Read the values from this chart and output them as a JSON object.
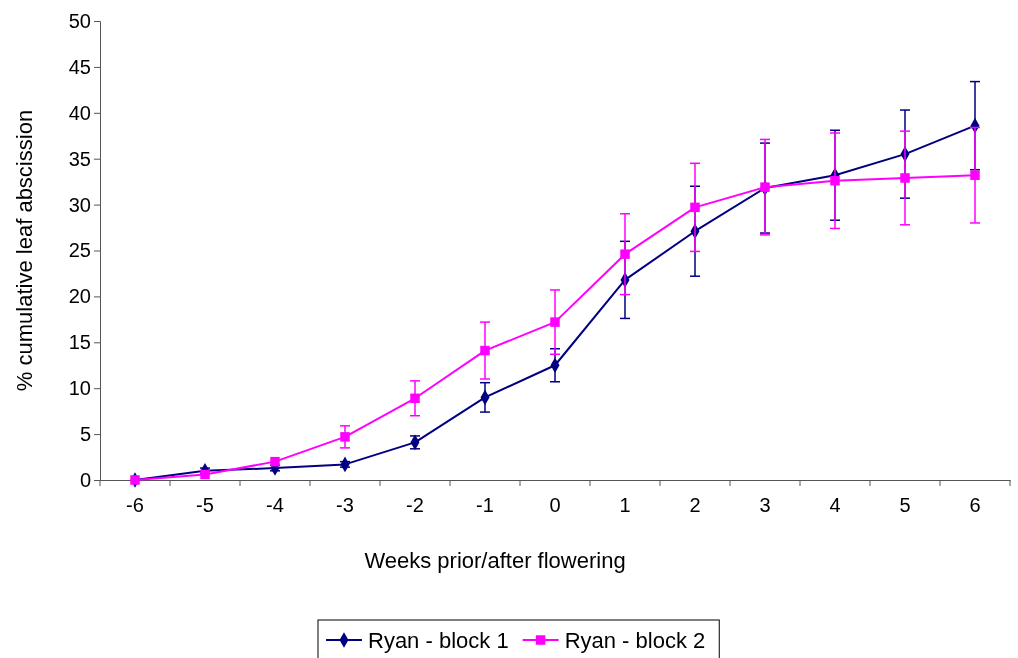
{
  "chart_data": {
    "type": "line",
    "xlabel": "Weeks prior/after flowering",
    "ylabel": "% cumulative leaf abscission",
    "categories": [
      "-6",
      "-5",
      "-4",
      "-3",
      "-2",
      "-1",
      "0",
      "1",
      "2",
      "3",
      "4",
      "5",
      "6"
    ],
    "ylim": [
      0,
      50
    ],
    "yticks": [
      0,
      5,
      10,
      15,
      20,
      25,
      30,
      35,
      40,
      45,
      50
    ],
    "grid": false,
    "legend": "bottom",
    "series": [
      {
        "name": "Ryan - block 1",
        "color": "#000080",
        "marker": "diamond",
        "values": [
          0,
          1.0,
          1.3,
          1.7,
          4.1,
          9.0,
          12.5,
          21.8,
          27.1,
          31.8,
          33.2,
          35.5,
          38.6
        ],
        "errors": [
          null,
          0.3,
          0.3,
          0.3,
          0.7,
          1.6,
          1.8,
          4.2,
          4.9,
          4.9,
          4.9,
          4.8,
          4.8
        ]
      },
      {
        "name": "Ryan - block 2",
        "color": "#ff00ff",
        "marker": "square",
        "values": [
          0,
          0.6,
          2.0,
          4.7,
          8.9,
          14.1,
          17.2,
          24.6,
          29.7,
          31.9,
          32.6,
          32.9,
          33.2
        ],
        "errors": [
          null,
          null,
          null,
          1.2,
          1.9,
          3.1,
          3.5,
          4.4,
          4.8,
          5.2,
          5.2,
          5.1,
          5.2
        ]
      }
    ]
  }
}
